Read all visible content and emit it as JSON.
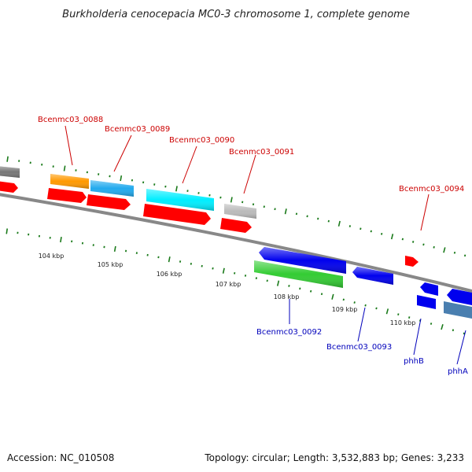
{
  "title": "Burkholderia cenocepacia MC0-3 chromosome 1, complete genome",
  "footer": {
    "accession": "Accession: NC_010508",
    "summary": "Topology: circular; Length: 3,532,883 bp; Genes: 3,233"
  },
  "ticks": [
    "104 kbp",
    "105 kbp",
    "106 kbp",
    "107 kbp",
    "108 kbp",
    "109 kbp",
    "110 kbp"
  ],
  "genes": {
    "forward": [
      "Bcenmc03_0088",
      "Bcenmc03_0089",
      "Bcenmc03_0090",
      "Bcenmc03_0091",
      "Bcenmc03_0094"
    ],
    "reverse": [
      "Bcenmc03_0092",
      "Bcenmc03_0093",
      "phhB",
      "phhA"
    ]
  },
  "colors": {
    "forward_label": "#cc0000",
    "reverse_label": "#0000bb",
    "cds": "#ff0000",
    "backbone": "#888888",
    "tick": "#1a7a1a",
    "gray_feature": "#777777",
    "orange_feature": "#ff9900",
    "skyblue_feature": "#22aaee",
    "cyan_feature": "#00eeff",
    "silver_feature": "#bbbbbb",
    "blue_feature": "#0000ee",
    "green_feature": "#33cc33",
    "steelblue_feature": "#4a7fb0"
  }
}
